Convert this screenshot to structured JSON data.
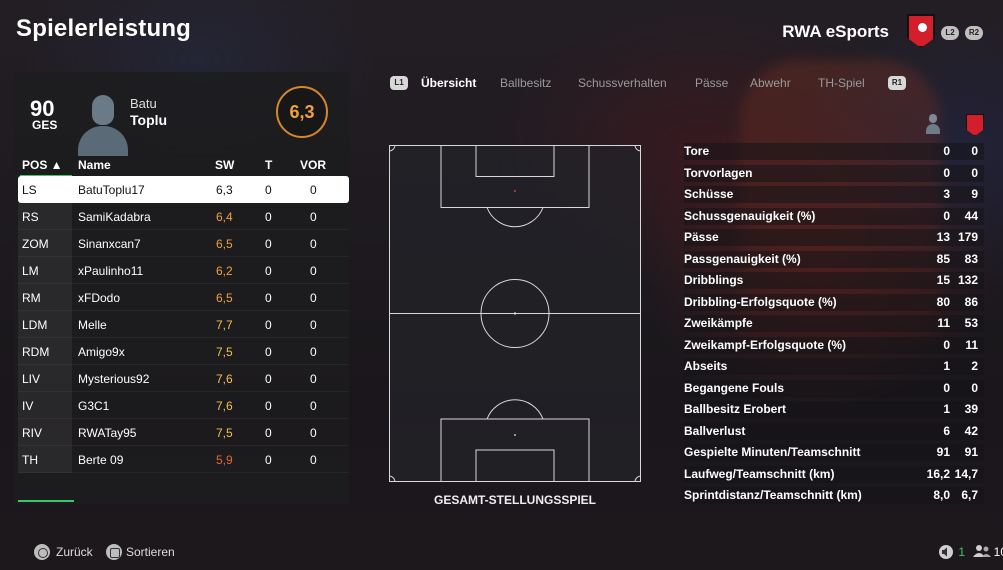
{
  "header": {
    "title": "Spielerleistung",
    "club_name": "RWA eSports",
    "l2": "L2",
    "r2": "R2"
  },
  "player": {
    "ovr": "90",
    "ovr_label": "GES",
    "first_name": "Batu",
    "last_name": "Toplu",
    "rating": "6,3"
  },
  "table": {
    "headers": {
      "pos": "POS ▲",
      "name": "Name",
      "sw": "SW",
      "t": "T",
      "vor": "VOR"
    },
    "rows": [
      {
        "pos": "LS",
        "name": "BatuToplu17",
        "sw": "6,3",
        "t": "0",
        "vor": "0",
        "tone": "plain"
      },
      {
        "pos": "RS",
        "name": "SamiKadabra",
        "sw": "6,4",
        "t": "0",
        "vor": "0",
        "tone": "orange"
      },
      {
        "pos": "ZOM",
        "name": "Sinanxcan7",
        "sw": "6,5",
        "t": "0",
        "vor": "0",
        "tone": "orange"
      },
      {
        "pos": "LM",
        "name": "xPaulinho11",
        "sw": "6,2",
        "t": "0",
        "vor": "0",
        "tone": "orange"
      },
      {
        "pos": "RM",
        "name": "xFDodo",
        "sw": "6,5",
        "t": "0",
        "vor": "0",
        "tone": "orange"
      },
      {
        "pos": "LDM",
        "name": "Melle",
        "sw": "7,7",
        "t": "0",
        "vor": "0",
        "tone": "yellow"
      },
      {
        "pos": "RDM",
        "name": "Amigo9x",
        "sw": "7,5",
        "t": "0",
        "vor": "0",
        "tone": "yellow"
      },
      {
        "pos": "LIV",
        "name": "Mysterious92",
        "sw": "7,6",
        "t": "0",
        "vor": "0",
        "tone": "yellow"
      },
      {
        "pos": "IV",
        "name": "G3C1",
        "sw": "7,6",
        "t": "0",
        "vor": "0",
        "tone": "yellow"
      },
      {
        "pos": "RIV",
        "name": "RWATay95",
        "sw": "7,5",
        "t": "0",
        "vor": "0",
        "tone": "yellow"
      },
      {
        "pos": "TH",
        "name": "Berte 09",
        "sw": "5,9",
        "t": "0",
        "vor": "0",
        "tone": "red"
      }
    ]
  },
  "tabs": {
    "l1": "L1",
    "r1": "R1",
    "items": [
      "Übersicht",
      "Ballbesitz",
      "Schussverhalten",
      "Pässe",
      "Abwehr",
      "TH-Spiel"
    ]
  },
  "pitch": {
    "title": "GESAMT-STELLUNGSSPIEL"
  },
  "stats": [
    {
      "label": "Tore",
      "home": "0",
      "away": "0"
    },
    {
      "label": "Torvorlagen",
      "home": "0",
      "away": "0"
    },
    {
      "label": "Schüsse",
      "home": "3",
      "away": "9"
    },
    {
      "label": "Schussgenauigkeit (%)",
      "home": "0",
      "away": "44"
    },
    {
      "label": "Pässe",
      "home": "13",
      "away": "179"
    },
    {
      "label": "Passgenauigkeit (%)",
      "home": "85",
      "away": "83"
    },
    {
      "label": "Dribblings",
      "home": "15",
      "away": "132"
    },
    {
      "label": "Dribbling-Erfolgsquote (%)",
      "home": "80",
      "away": "86"
    },
    {
      "label": "Zweikämpfe",
      "home": "11",
      "away": "53"
    },
    {
      "label": "Zweikampf-Erfolgsquote (%)",
      "home": "0",
      "away": "11"
    },
    {
      "label": "Abseits",
      "home": "1",
      "away": "2"
    },
    {
      "label": "Begangene Fouls",
      "home": "0",
      "away": "0"
    },
    {
      "label": "Ballbesitz Erobert",
      "home": "1",
      "away": "39"
    },
    {
      "label": "Ballverlust",
      "home": "6",
      "away": "42"
    },
    {
      "label": "Gespielte Minuten/Teamschnitt",
      "home": "91",
      "away": "91"
    },
    {
      "label": "Laufweg/Teamschnitt (km)",
      "home": "16,2",
      "away": "14,7"
    },
    {
      "label": "Sprintdistanz/Teamschnitt (km)",
      "home": "8,0",
      "away": "6,7"
    }
  ],
  "footer": {
    "back": "Zurück",
    "sort": "Sortieren",
    "speaker_count": "1",
    "users_count": "10"
  }
}
